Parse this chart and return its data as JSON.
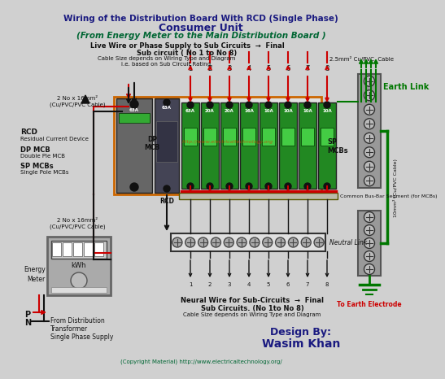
{
  "title_line1": "Wiring of the Distribution Board With RCD (Single Phase)",
  "title_line2": "Consumer Unit",
  "title_line3": "(From Energy Meter to the Main Distribution Board )",
  "bg_color": "#d0d0d0",
  "title_color": "#1a1a80",
  "subtitle_color": "#006633",
  "red": "#cc0000",
  "green": "#007700",
  "dark_green": "#004400",
  "black": "#111111",
  "white": "#ffffff",
  "orange_border": "#cc6600",
  "label_live_wire": "Live Wire or Phase Supply to Sub Circuits  →  Final",
  "label_live_wire2": "Sub circuit ( No 1 to No 8)",
  "label_cable_size": "Cable Size depends on Wiring Type and Diagram",
  "label_cable_size2": "i.e. based on Sub Circuit Rating.",
  "label_rcd_left": "RCD",
  "label_rcd_left2": "Residual Current Device",
  "label_dp_mcb": "DP MCB",
  "label_dp_mcb2": "Double Ple MCB",
  "label_sp_mcbs": "SP MCBs",
  "label_sp_mcbs2": "Single Pole MCBs",
  "label_cable1": "2 No x 16mm²",
  "label_cable1b": "(Cu/PVC/PVC Cable)",
  "label_cable2": "2 No x 16mm²",
  "label_cable2b": "(Cu/PVC/PVC Cable)",
  "label_energy": "Energy",
  "label_meter": "Meter",
  "label_kwh": "kWh",
  "label_neutral_link": "Neutral Link",
  "label_bus_bar": "Common Bus-Bar Segment (for MCBs)",
  "label_earth_link": "Earth Link",
  "label_earth_cable": "2.5mm² Cu/PVC  Cable",
  "label_earth_electrode": "To Earth Electrode",
  "label_earth_cable2": "10mm² (Cu/PVC Cable)",
  "label_rcd_bottom": "RCD",
  "label_url": "http://www.electricaltechnology.org",
  "label_neutral_wire1": "Neural Wire for Sub-Circuits  →  Final",
  "label_neutral_wire2": "Sub Circuits. (No 1to No 8)",
  "label_neutral_wire3": "Cable Size depends on Wiring Type and Diagram",
  "label_from_dist": "From Distribution",
  "label_from_dist2": "Transformer",
  "label_from_dist3": "Single Phase Supply",
  "label_design": "Design By:",
  "label_wasim": "Wasim Khan",
  "label_copyright": "(Copyright Material) http://www.electricaltechnology.org/",
  "sp_ratings": [
    "63A",
    "20A",
    "20A",
    "16A",
    "10A",
    "10A",
    "10A",
    "10A"
  ],
  "sub_nums": [
    "1",
    "2",
    "3",
    "4",
    "5",
    "6",
    "7",
    "8"
  ]
}
